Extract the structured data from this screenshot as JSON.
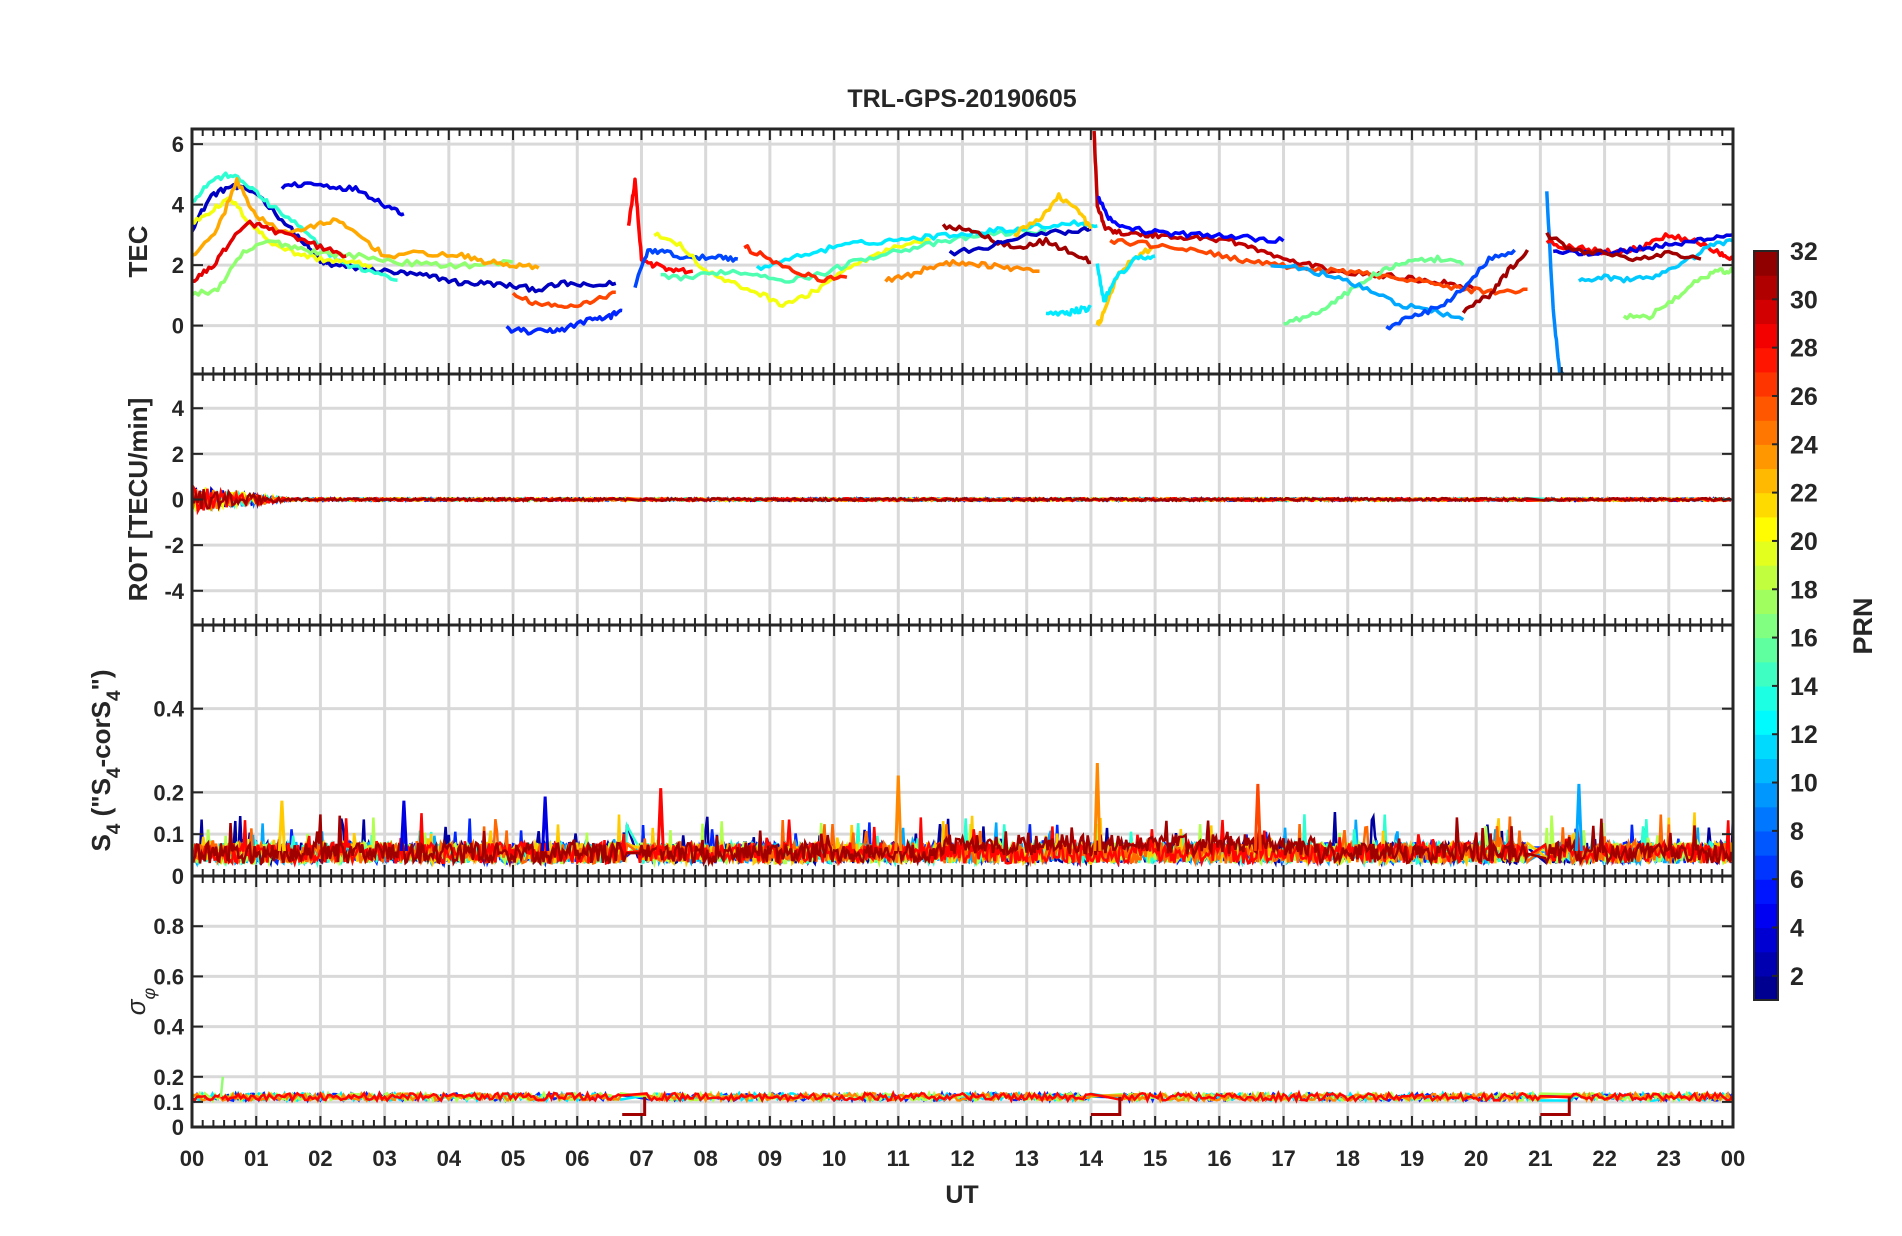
{
  "chart_data": {
    "type": "line",
    "title": "TRL-GPS-20190605",
    "xlabel": "UT",
    "xlim": [
      0,
      24
    ],
    "x_ticks": [
      "00",
      "01",
      "02",
      "03",
      "04",
      "05",
      "06",
      "07",
      "08",
      "09",
      "10",
      "11",
      "12",
      "13",
      "14",
      "15",
      "16",
      "17",
      "18",
      "19",
      "20",
      "21",
      "22",
      "23",
      "00"
    ],
    "colorbar": {
      "label": "PRN",
      "colormap": "jet",
      "range": [
        1,
        32
      ],
      "ticks": [
        "2",
        "4",
        "6",
        "8",
        "10",
        "12",
        "14",
        "16",
        "18",
        "20",
        "22",
        "24",
        "26",
        "28",
        "30",
        "32"
      ]
    },
    "panels": [
      {
        "id": "tec",
        "ylabel": "TEC",
        "ylim": [
          -1.6,
          6.5
        ],
        "yticks": [
          "0",
          "2",
          "4",
          "6"
        ],
        "series": [
          {
            "prn": 3,
            "x": [
              0.0,
              0.3,
              0.6,
              1.0,
              1.4,
              1.8,
              2.0,
              2.2,
              2.6,
              3.0,
              3.4,
              3.8,
              4.2,
              4.6,
              5.0,
              5.4,
              5.8,
              6.2,
              6.6
            ],
            "y": [
              3.2,
              4.3,
              4.6,
              4.4,
              3.5,
              2.6,
              2.1,
              2.0,
              1.9,
              1.8,
              1.7,
              1.6,
              1.4,
              1.4,
              1.3,
              1.2,
              1.4,
              1.3,
              1.4
            ]
          },
          {
            "prn": 4,
            "x": [
              1.4,
              1.8,
              2.2,
              2.6,
              3.0,
              3.3
            ],
            "y": [
              4.6,
              4.7,
              4.6,
              4.5,
              4.0,
              3.7
            ]
          },
          {
            "prn": 14,
            "x": [
              0.0,
              0.3,
              0.6,
              0.9,
              1.2,
              1.6,
              2.0,
              2.4,
              2.8,
              3.2
            ],
            "y": [
              4.1,
              4.8,
              5.0,
              4.6,
              4.0,
              3.4,
              2.6,
              2.0,
              1.8,
              1.5
            ]
          },
          {
            "prn": 20,
            "x": [
              0.0,
              0.3,
              0.6,
              0.9,
              1.2,
              1.6,
              2.0,
              2.4,
              2.8
            ],
            "y": [
              3.4,
              3.8,
              4.2,
              3.4,
              2.8,
              2.4,
              2.2,
              2.1,
              2.0
            ]
          },
          {
            "prn": 17,
            "x": [
              0.0,
              0.4,
              0.8,
              1.2,
              1.6,
              2.0,
              2.6,
              3.2,
              3.8,
              4.4,
              5.0
            ],
            "y": [
              1.0,
              1.2,
              2.4,
              2.8,
              2.6,
              2.4,
              2.3,
              2.1,
              2.0,
              2.0,
              2.1
            ]
          },
          {
            "prn": 23,
            "x": [
              0.0,
              0.4,
              0.7,
              1.0,
              1.4,
              1.8,
              2.2,
              2.6,
              3.0,
              3.6,
              4.2,
              4.6,
              5.0,
              5.4
            ],
            "y": [
              2.3,
              3.2,
              4.8,
              3.6,
              3.1,
              3.2,
              3.5,
              3.0,
              2.3,
              2.4,
              2.3,
              2.1,
              2.0,
              1.9
            ]
          },
          {
            "prn": 29,
            "x": [
              0.0,
              0.3,
              0.6,
              0.9,
              1.2,
              1.6,
              2.0,
              2.4
            ],
            "y": [
              1.5,
              1.9,
              2.8,
              3.4,
              3.2,
              2.9,
              2.6,
              2.3
            ]
          },
          {
            "prn": 6,
            "x": [
              4.9,
              5.2,
              5.5,
              5.8,
              6.2,
              6.5,
              6.7
            ],
            "y": [
              -0.1,
              -0.2,
              -0.2,
              -0.1,
              0.2,
              0.3,
              0.5
            ]
          },
          {
            "prn": 26,
            "x": [
              5.0,
              5.4,
              5.8,
              6.2,
              6.6
            ],
            "y": [
              1.0,
              0.7,
              0.6,
              0.8,
              1.1
            ]
          },
          {
            "prn": 28,
            "x": [
              6.8,
              6.9,
              7.0,
              7.2,
              7.5,
              7.8
            ],
            "y": [
              3.3,
              4.8,
              2.2,
              2.0,
              1.8,
              1.8
            ]
          },
          {
            "prn": 7,
            "x": [
              6.9,
              7.1,
              7.4,
              7.8,
              8.2,
              8.5
            ],
            "y": [
              1.3,
              2.5,
              2.4,
              2.2,
              2.3,
              2.2
            ]
          },
          {
            "prn": 20,
            "x": [
              7.2,
              7.6,
              8.0,
              8.4,
              8.8,
              9.2,
              9.6,
              10.0,
              10.5,
              11.0,
              11.5
            ],
            "y": [
              3.0,
              2.7,
              1.8,
              1.4,
              1.1,
              0.7,
              1.0,
              1.6,
              2.2,
              2.6,
              2.8
            ]
          },
          {
            "prn": 15,
            "x": [
              7.3,
              7.8,
              8.3,
              8.8,
              9.3,
              9.8,
              10.3,
              10.8,
              11.3,
              11.8,
              12.3,
              12.8,
              13.3
            ],
            "y": [
              1.6,
              1.6,
              1.8,
              1.7,
              1.5,
              1.7,
              2.1,
              2.4,
              2.6,
              2.8,
              3.0,
              3.1,
              3.1
            ]
          },
          {
            "prn": 12,
            "x": [
              8.8,
              9.3,
              9.8,
              10.3,
              10.8,
              11.3,
              11.8,
              12.3,
              12.8,
              13.3,
              13.8,
              14.1
            ],
            "y": [
              1.9,
              2.2,
              2.5,
              2.7,
              2.8,
              2.9,
              3.0,
              3.1,
              3.2,
              3.3,
              3.4,
              3.3
            ]
          },
          {
            "prn": 24,
            "x": [
              10.8,
              11.2,
              11.6,
              12.0,
              12.4,
              12.8,
              13.2
            ],
            "y": [
              1.5,
              1.7,
              2.0,
              2.1,
              2.0,
              1.9,
              1.8
            ]
          },
          {
            "prn": 27,
            "x": [
              8.6,
              9.0,
              9.4,
              9.8,
              10.2
            ],
            "y": [
              2.6,
              2.2,
              1.8,
              1.5,
              1.6
            ]
          },
          {
            "prn": 31,
            "x": [
              11.7,
              12.1,
              12.5,
              12.9,
              13.3,
              13.7,
              14.0
            ],
            "y": [
              3.3,
              3.2,
              2.8,
              2.6,
              2.8,
              2.4,
              2.1
            ]
          },
          {
            "prn": 3,
            "x": [
              11.8,
              12.4,
              13.0,
              13.6,
              14.0
            ],
            "y": [
              2.4,
              2.6,
              3.0,
              3.1,
              3.2
            ]
          },
          {
            "prn": 22,
            "x": [
              12.8,
              13.2,
              13.5,
              13.8,
              14.0
            ],
            "y": [
              3.0,
              3.5,
              4.3,
              3.8,
              3.2
            ]
          },
          {
            "prn": 12,
            "x": [
              13.3,
              13.6,
              13.8,
              14.0
            ],
            "y": [
              0.4,
              0.4,
              0.5,
              0.6
            ]
          },
          {
            "prn": 30,
            "x": [
              14.05,
              14.1,
              14.2,
              14.4,
              14.7,
              15.0,
              15.4,
              15.8,
              16.2,
              16.6,
              17.0,
              17.4,
              17.8,
              18.3,
              18.8,
              19.2,
              19.6,
              20.0
            ],
            "y": [
              6.4,
              4.0,
              3.3,
              3.1,
              3.0,
              3.0,
              2.9,
              2.9,
              2.8,
              2.5,
              2.2,
              2.0,
              1.8,
              1.7,
              1.6,
              1.5,
              1.4,
              1.2
            ]
          },
          {
            "prn": 5,
            "x": [
              14.1,
              14.3,
              14.6,
              15.0,
              15.5,
              16.0,
              16.5,
              17.0
            ],
            "y": [
              4.3,
              3.5,
              3.2,
              3.1,
              3.0,
              3.0,
              2.9,
              2.8
            ]
          },
          {
            "prn": 22,
            "x": [
              14.1,
              14.2,
              14.4,
              14.7,
              15.0
            ],
            "y": [
              0.0,
              0.4,
              1.6,
              2.3,
              2.6
            ]
          },
          {
            "prn": 12,
            "x": [
              14.1,
              14.2,
              14.4,
              14.7,
              15.0
            ],
            "y": [
              2.0,
              0.8,
              1.6,
              2.2,
              2.3
            ]
          },
          {
            "prn": 26,
            "x": [
              14.3,
              14.8,
              15.3,
              15.8,
              16.3,
              16.8,
              17.3,
              17.8,
              18.3,
              18.8,
              19.3,
              19.8,
              20.3,
              20.8
            ],
            "y": [
              2.8,
              2.7,
              2.6,
              2.4,
              2.2,
              2.0,
              1.9,
              1.8,
              1.7,
              1.6,
              1.4,
              1.2,
              1.1,
              1.2
            ]
          },
          {
            "prn": 16,
            "x": [
              17.0,
              17.4,
              17.8,
              18.2,
              18.6,
              19.0,
              19.4,
              19.8
            ],
            "y": [
              0.1,
              0.3,
              0.8,
              1.4,
              1.9,
              2.1,
              2.2,
              2.0
            ]
          },
          {
            "prn": 10,
            "x": [
              16.8,
              17.3,
              17.8,
              18.3,
              18.8,
              19.3,
              19.8
            ],
            "y": [
              2.0,
              1.9,
              1.6,
              1.2,
              0.7,
              0.5,
              0.2
            ]
          },
          {
            "prn": 7,
            "x": [
              18.6,
              19.0,
              19.4,
              19.8,
              20.2,
              20.6
            ],
            "y": [
              -0.1,
              0.3,
              0.6,
              1.2,
              2.2,
              2.5
            ]
          },
          {
            "prn": 31,
            "x": [
              19.8,
              20.2,
              20.5,
              20.8
            ],
            "y": [
              0.5,
              1.0,
              1.8,
              2.5
            ]
          },
          {
            "prn": 9,
            "x": [
              21.1,
              21.2,
              21.3,
              21.35
            ],
            "y": [
              4.4,
              0.5,
              -1.5,
              -1.6
            ]
          },
          {
            "prn": 28,
            "x": [
              21.1,
              21.4,
              21.8,
              22.2,
              22.6,
              23.0,
              23.4,
              23.8,
              24.0
            ],
            "y": [
              2.8,
              2.6,
              2.5,
              2.4,
              2.6,
              3.0,
              2.8,
              2.4,
              2.2
            ]
          },
          {
            "prn": 4,
            "x": [
              21.2,
              21.6,
              22.0,
              22.4,
              22.8,
              23.2,
              23.6,
              24.0
            ],
            "y": [
              2.5,
              2.4,
              2.4,
              2.5,
              2.6,
              2.7,
              2.9,
              3.0
            ]
          },
          {
            "prn": 11,
            "x": [
              21.6,
              22.0,
              22.4,
              22.8,
              23.2,
              23.6,
              24.0
            ],
            "y": [
              1.5,
              1.6,
              1.5,
              1.6,
              2.0,
              2.6,
              2.8
            ]
          },
          {
            "prn": 17,
            "x": [
              22.3,
              22.7,
              23.1,
              23.5,
              23.8,
              24.0
            ],
            "y": [
              0.3,
              0.3,
              0.9,
              1.6,
              1.8,
              1.8
            ]
          },
          {
            "prn": 31,
            "x": [
              21.1,
              21.5,
              22.0,
              22.5,
              23.0,
              23.5
            ],
            "y": [
              3.0,
              2.5,
              2.4,
              2.2,
              2.4,
              2.2
            ]
          }
        ]
      },
      {
        "id": "rot",
        "ylabel": "ROT [TECU/min]",
        "ylim": [
          -5.5,
          5.5
        ],
        "yticks": [
          "-4",
          "-2",
          "0",
          "2",
          "4"
        ],
        "description_values": {
          "mean": 0.0,
          "spread_early": 0.5,
          "spread_rest": 0.1
        }
      },
      {
        "id": "s4",
        "ylabel": "S4 (\"S4-corS4\")",
        "ylabel_parts": [
          "S",
          "4",
          " (\"S",
          "4",
          "-corS",
          "4",
          "\")"
        ],
        "ylim": [
          0,
          0.6
        ],
        "yticks": [
          "0",
          "0.1",
          "0.2",
          "0.4"
        ],
        "peaks": [
          {
            "x": 7.3,
            "y": 0.21
          },
          {
            "x": 11.0,
            "y": 0.24
          },
          {
            "x": 14.1,
            "y": 0.27
          },
          {
            "x": 16.6,
            "y": 0.22
          },
          {
            "x": 21.6,
            "y": 0.22
          },
          {
            "x": 5.5,
            "y": 0.19
          },
          {
            "x": 3.3,
            "y": 0.18
          },
          {
            "x": 1.4,
            "y": 0.18
          }
        ]
      },
      {
        "id": "sigma",
        "ylabel": "σφ",
        "ylabel_parts": [
          "σ",
          "φ"
        ],
        "ylim": [
          0,
          1.0
        ],
        "yticks": [
          "0",
          "0.1",
          "0.2",
          "0.4",
          "0.6",
          "0.8"
        ],
        "baseline": 0.12,
        "dips": [
          {
            "x": [
              6.7,
              7.05
            ],
            "y": 0.05
          },
          {
            "x": 14.0,
            "x_end": 14.45,
            "y": 0.05
          },
          {
            "x": 21.0,
            "x_end": 21.45,
            "y": 0.05
          }
        ]
      }
    ]
  }
}
